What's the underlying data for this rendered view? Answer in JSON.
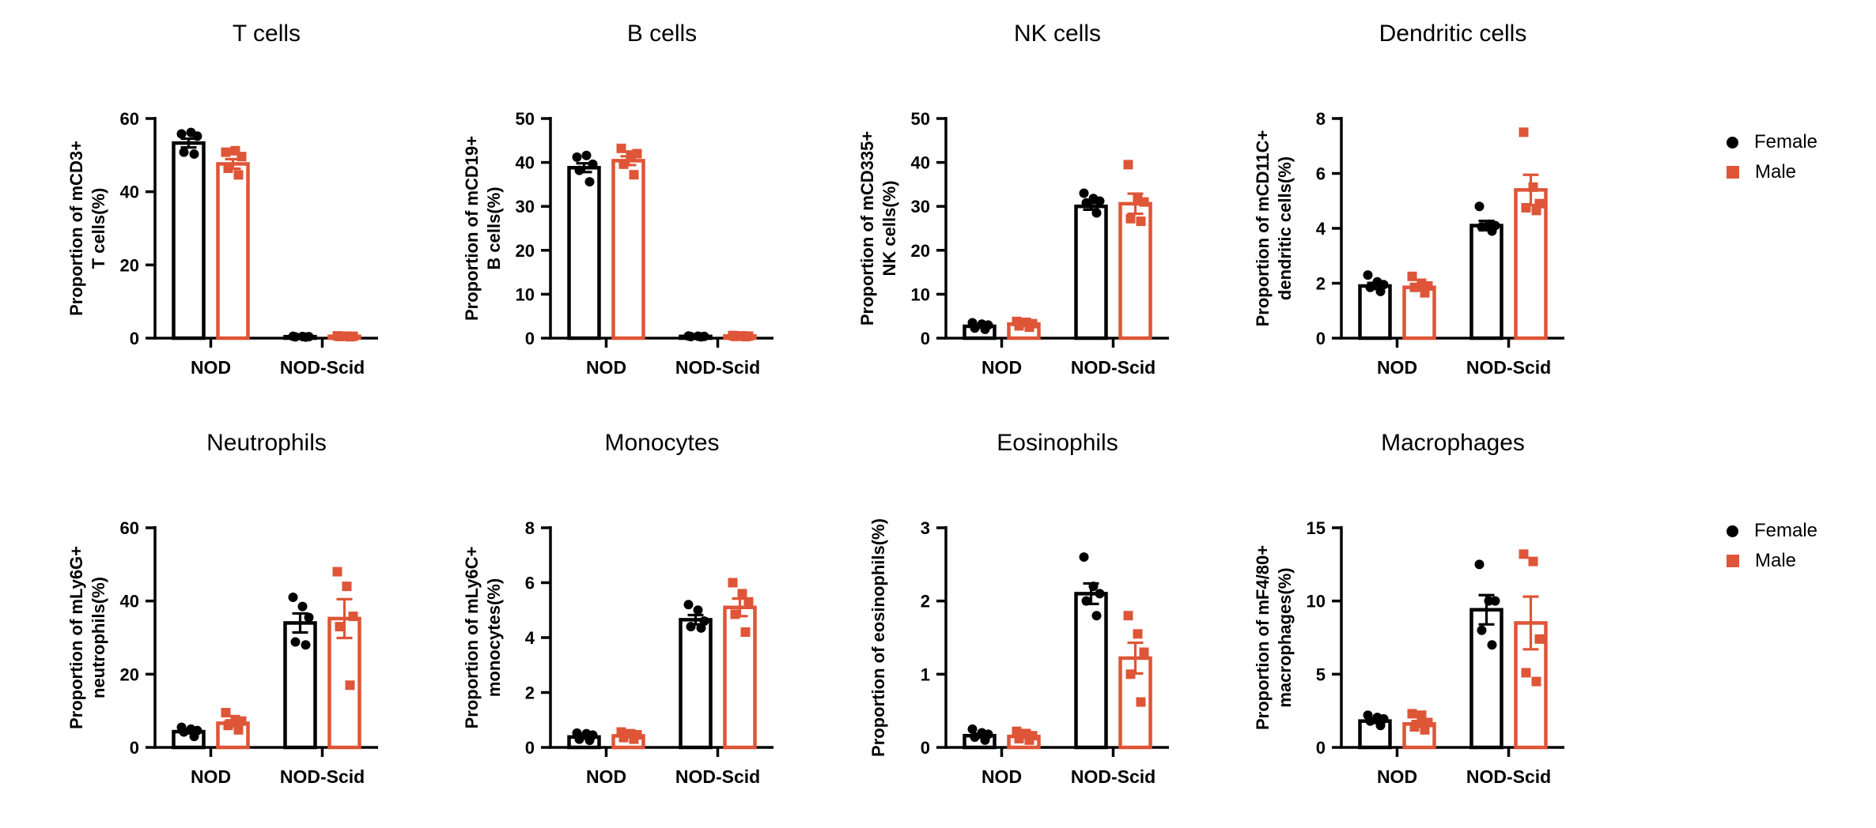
{
  "figure": {
    "background": "#ffffff",
    "legend": {
      "position": "right",
      "items": [
        {
          "label": "Female",
          "marker": "circle",
          "color": "#000000"
        },
        {
          "label": "Male",
          "marker": "square",
          "color": "#DE5537"
        }
      ]
    }
  },
  "chart_data": [
    {
      "type": "bar",
      "title": "T cells",
      "ylabel": "Proportion of mCD3+ T cells(%)",
      "ylabel_lines": [
        "Proportion of mCD3+",
        "T cells(%)"
      ],
      "xlabel": "",
      "categories": [
        "NOD",
        "NOD-Scid"
      ],
      "ylim": [
        0,
        60
      ],
      "yticks": [
        0,
        20,
        40,
        60
      ],
      "grid": false,
      "series": [
        {
          "name": "Female",
          "marker": "circle",
          "color": "#000000",
          "means": [
            53.3,
            0.4
          ],
          "sem": [
            1.2,
            0.06
          ],
          "points": [
            [
              55.8,
              56.2,
              55.2,
              50.8,
              50.3
            ],
            [
              0.5,
              0.45,
              0.4,
              0.35,
              0.3
            ]
          ]
        },
        {
          "name": "Male",
          "marker": "square",
          "color": "#DE5537",
          "means": [
            47.6,
            0.5
          ],
          "sem": [
            1.3,
            0.07
          ],
          "points": [
            [
              50.8,
              51.2,
              49.6,
              46.4,
              44.6
            ],
            [
              0.62,
              0.55,
              0.5,
              0.45,
              0.38
            ]
          ]
        }
      ]
    },
    {
      "type": "bar",
      "title": "B cells",
      "ylabel": "Proportion of mCD19+ B cells(%)",
      "ylabel_lines": [
        "Proportion of mCD19+",
        "B cells(%)"
      ],
      "xlabel": "",
      "categories": [
        "NOD",
        "NOD-Scid"
      ],
      "ylim": [
        0,
        50
      ],
      "yticks": [
        0,
        10,
        20,
        30,
        40,
        50
      ],
      "grid": false,
      "series": [
        {
          "name": "Female",
          "marker": "circle",
          "color": "#000000",
          "means": [
            38.8,
            0.4
          ],
          "sem": [
            1.0,
            0.06
          ],
          "points": [
            [
              41.2,
              41.6,
              39.6,
              38.2,
              35.6
            ],
            [
              0.5,
              0.45,
              0.4,
              0.35,
              0.3
            ]
          ]
        },
        {
          "name": "Male",
          "marker": "square",
          "color": "#DE5537",
          "means": [
            40.4,
            0.5
          ],
          "sem": [
            1.0,
            0.07
          ],
          "points": [
            [
              43.2,
              41.7,
              42.0,
              39.6,
              37.2
            ],
            [
              0.6,
              0.52,
              0.47,
              0.4,
              0.35
            ]
          ]
        }
      ]
    },
    {
      "type": "bar",
      "title": "NK cells",
      "ylabel": "Proportion of mCD335+ NK cells(%)",
      "ylabel_lines": [
        "Proportion of mCD335+",
        "NK cells(%)"
      ],
      "xlabel": "",
      "categories": [
        "NOD",
        "NOD-Scid"
      ],
      "ylim": [
        0,
        50
      ],
      "yticks": [
        0,
        10,
        20,
        30,
        40,
        50
      ],
      "grid": false,
      "series": [
        {
          "name": "Female",
          "marker": "circle",
          "color": "#000000",
          "means": [
            2.7,
            30.0
          ],
          "sem": [
            0.28,
            0.75
          ],
          "points": [
            [
              3.5,
              3.2,
              3.0,
              2.3,
              2.0
            ],
            [
              33.0,
              31.8,
              31.2,
              30.8,
              28.5
            ]
          ]
        },
        {
          "name": "Male",
          "marker": "square",
          "color": "#DE5537",
          "means": [
            3.2,
            30.6
          ],
          "sem": [
            0.25,
            2.3
          ],
          "points": [
            [
              3.8,
              3.6,
              3.3,
              2.8,
              2.5
            ],
            [
              39.5,
              31.6,
              31.0,
              27.2,
              26.6
            ]
          ]
        }
      ]
    },
    {
      "type": "bar",
      "title": "Dendritic cells",
      "ylabel": "Proportion of mCD11C+ dendritic cells(%)",
      "ylabel_lines": [
        "Proportion of mCD11C+",
        "dendritic cells(%)"
      ],
      "xlabel": "",
      "categories": [
        "NOD",
        "NOD-Scid"
      ],
      "ylim": [
        0,
        8
      ],
      "yticks": [
        0,
        2,
        4,
        6,
        8
      ],
      "grid": false,
      "series": [
        {
          "name": "Female",
          "marker": "circle",
          "color": "#000000",
          "means": [
            1.9,
            4.1
          ],
          "sem": [
            0.11,
            0.17
          ],
          "points": [
            [
              2.3,
              2.05,
              1.95,
              1.85,
              1.7
            ],
            [
              4.8,
              4.15,
              4.1,
              4.05,
              3.9
            ]
          ]
        },
        {
          "name": "Male",
          "marker": "square",
          "color": "#DE5537",
          "means": [
            1.85,
            5.4
          ],
          "sem": [
            0.11,
            0.55
          ],
          "points": [
            [
              2.25,
              2.0,
              1.9,
              1.85,
              1.65
            ],
            [
              7.5,
              5.5,
              4.9,
              4.75,
              4.65
            ]
          ]
        }
      ]
    },
    {
      "type": "bar",
      "title": "Neutrophils",
      "ylabel": "Proportion of mLy6G+ neutrophils(%)",
      "ylabel_lines": [
        "Proportion of mLy6G+",
        "neutrophils(%)"
      ],
      "xlabel": "",
      "categories": [
        "NOD",
        "NOD-Scid"
      ],
      "ylim": [
        0,
        60
      ],
      "yticks": [
        0,
        20,
        40,
        60
      ],
      "grid": false,
      "series": [
        {
          "name": "Female",
          "marker": "circle",
          "color": "#000000",
          "means": [
            4.3,
            34.0
          ],
          "sem": [
            0.45,
            2.6
          ],
          "points": [
            [
              5.5,
              5.0,
              4.6,
              4.2,
              3.0
            ],
            [
              41.0,
              38.5,
              35.5,
              28.8,
              28.0
            ]
          ]
        },
        {
          "name": "Male",
          "marker": "square",
          "color": "#DE5537",
          "means": [
            6.6,
            35.2
          ],
          "sem": [
            0.8,
            5.3
          ],
          "points": [
            [
              9.5,
              7.6,
              7.2,
              6.0,
              4.8
            ],
            [
              48.0,
              44.0,
              35.8,
              33.0,
              17.0
            ]
          ]
        }
      ]
    },
    {
      "type": "bar",
      "title": "Monocytes",
      "ylabel": "Proportion of mLy6C+ monocytes(%)",
      "ylabel_lines": [
        "Proportion of mLy6C+",
        "monocytes(%)"
      ],
      "xlabel": "",
      "categories": [
        "NOD",
        "NOD-Scid"
      ],
      "ylim": [
        0,
        8
      ],
      "yticks": [
        0,
        2,
        4,
        6,
        8
      ],
      "grid": false,
      "series": [
        {
          "name": "Female",
          "marker": "circle",
          "color": "#000000",
          "means": [
            0.38,
            4.65
          ],
          "sem": [
            0.05,
            0.17
          ],
          "points": [
            [
              0.52,
              0.5,
              0.45,
              0.3,
              0.26
            ],
            [
              5.2,
              5.0,
              4.6,
              4.4,
              4.35
            ]
          ]
        },
        {
          "name": "Male",
          "marker": "square",
          "color": "#DE5537",
          "means": [
            0.42,
            5.1
          ],
          "sem": [
            0.05,
            0.32
          ],
          "points": [
            [
              0.56,
              0.5,
              0.46,
              0.36,
              0.3
            ],
            [
              6.0,
              5.6,
              5.3,
              4.85,
              4.2
            ]
          ]
        }
      ]
    },
    {
      "type": "bar",
      "title": "Eosinophils",
      "ylabel": "Proportion of eosinophils(%)",
      "ylabel_lines": [
        "Proportion of eosinophils(%)"
      ],
      "xlabel": "",
      "categories": [
        "NOD",
        "NOD-Scid"
      ],
      "ylim": [
        0,
        3
      ],
      "yticks": [
        0,
        1,
        2,
        3
      ],
      "grid": false,
      "series": [
        {
          "name": "Female",
          "marker": "circle",
          "color": "#000000",
          "means": [
            0.16,
            2.1
          ],
          "sem": [
            0.025,
            0.14
          ],
          "points": [
            [
              0.25,
              0.2,
              0.18,
              0.14,
              0.1
            ],
            [
              2.6,
              2.2,
              2.1,
              2.0,
              1.8
            ]
          ]
        },
        {
          "name": "Male",
          "marker": "square",
          "color": "#DE5537",
          "means": [
            0.15,
            1.22
          ],
          "sem": [
            0.022,
            0.21
          ],
          "points": [
            [
              0.22,
              0.19,
              0.16,
              0.12,
              0.1
            ],
            [
              1.8,
              1.55,
              1.3,
              1.0,
              0.62
            ]
          ]
        }
      ]
    },
    {
      "type": "bar",
      "title": "Macrophages",
      "ylabel": "Proportion of mF4/80+ macrophages(%)",
      "ylabel_lines": [
        "Proportion of mF4/80+",
        "macrophages(%)"
      ],
      "xlabel": "",
      "categories": [
        "NOD",
        "NOD-Scid"
      ],
      "ylim": [
        0,
        15
      ],
      "yticks": [
        0,
        5,
        10,
        15
      ],
      "grid": false,
      "series": [
        {
          "name": "Female",
          "marker": "circle",
          "color": "#000000",
          "means": [
            1.8,
            9.4
          ],
          "sem": [
            0.13,
            1.0
          ],
          "points": [
            [
              2.2,
              2.05,
              1.95,
              1.8,
              1.5
            ],
            [
              12.5,
              10.0,
              10.0,
              8.0,
              7.0
            ]
          ]
        },
        {
          "name": "Male",
          "marker": "square",
          "color": "#DE5537",
          "means": [
            1.6,
            8.5
          ],
          "sem": [
            0.2,
            1.8
          ],
          "points": [
            [
              2.3,
              2.2,
              1.7,
              1.4,
              1.2
            ],
            [
              13.2,
              12.7,
              7.4,
              5.1,
              4.5
            ]
          ]
        }
      ]
    }
  ]
}
